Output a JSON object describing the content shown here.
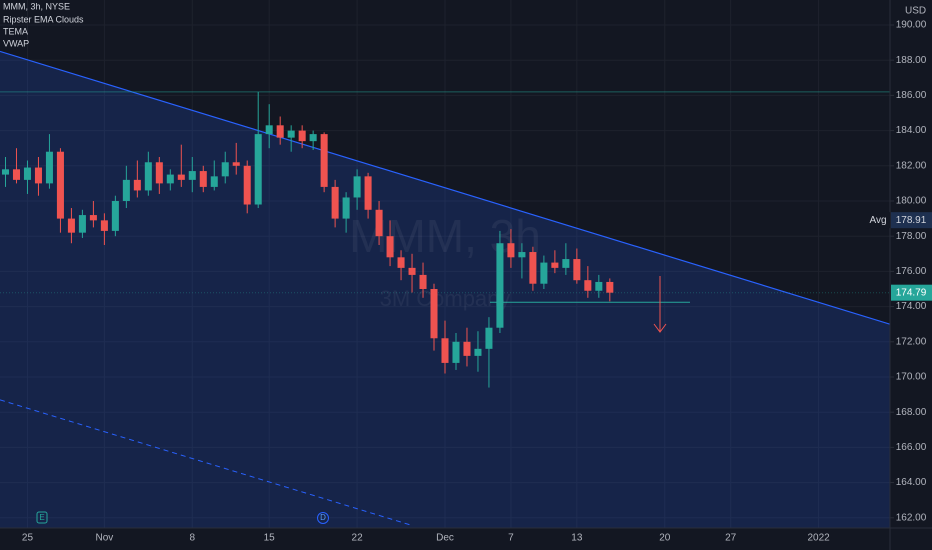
{
  "chart_data": {
    "type": "candlestick",
    "legend": [
      "MMM, 3h, NYSE",
      "Ripster EMA Clouds",
      "TEMA",
      "VWAP"
    ],
    "watermark": {
      "symbol": "MMM, 3h",
      "company": "3M Company"
    },
    "currency": "USD",
    "avg_label": "Avg",
    "avg_value": 178.91,
    "last_price": 174.79,
    "events": [
      "E",
      "D"
    ],
    "up_color": "#26a69a",
    "down_color": "#ef5350",
    "grid": true,
    "ylim": [
      161.42,
      191.42
    ],
    "yticks": [
      {
        "value": 190,
        "label": "190.00"
      },
      {
        "value": 188,
        "label": "188.00"
      },
      {
        "value": 186,
        "label": "186.00"
      },
      {
        "value": 184,
        "label": "184.00"
      },
      {
        "value": 182,
        "label": "182.00"
      },
      {
        "value": 180,
        "label": "180.00"
      },
      {
        "value": 178,
        "label": "178.00"
      },
      {
        "value": 176,
        "label": "176.00"
      },
      {
        "value": 174,
        "label": "174.00"
      },
      {
        "value": 172,
        "label": "172.00"
      },
      {
        "value": 170,
        "label": "170.00"
      },
      {
        "value": 168,
        "label": "168.00"
      },
      {
        "value": 166,
        "label": "166.00"
      },
      {
        "value": 164,
        "label": "164.00"
      },
      {
        "value": 162,
        "label": "162.00"
      }
    ],
    "categories": [
      null,
      null,
      "25",
      null,
      null,
      null,
      null,
      null,
      null,
      "Nov",
      null,
      null,
      null,
      null,
      null,
      null,
      null,
      "8",
      null,
      null,
      null,
      null,
      null,
      null,
      "15",
      null,
      null,
      null,
      null,
      null,
      null,
      null,
      "22",
      null,
      null,
      null,
      null,
      null,
      null,
      null,
      "Dec",
      null,
      null,
      null,
      null,
      null,
      "7",
      null,
      null,
      null,
      null,
      null,
      "13",
      null,
      null,
      null,
      null,
      null,
      null,
      null,
      "20",
      null,
      null,
      null,
      null,
      null,
      "27",
      null,
      null,
      null,
      null,
      null,
      null,
      null,
      "2022",
      null,
      null,
      null,
      null,
      null,
      null
    ],
    "open": [
      181.5,
      181.8,
      181.2,
      181.9,
      181,
      182.8,
      179,
      178.2,
      179.2,
      178.9,
      178.3,
      180,
      181.2,
      180.6,
      182.2,
      181,
      181.5,
      181.2,
      181.7,
      180.8,
      181.4,
      182.2,
      182,
      179.8,
      183.8,
      184.3,
      183.6,
      184,
      183.4,
      183.8,
      180.8,
      179,
      180.2,
      181.4,
      179.5,
      178,
      176.8,
      176.2,
      175.8,
      175,
      172.2,
      170.8,
      172,
      171.2,
      171.6,
      172.8,
      177.6,
      176.8,
      177.1,
      175.3,
      176.5,
      176.2,
      176.7,
      175.5,
      174.9,
      175.4,
      null,
      null,
      null,
      null,
      null,
      null,
      null,
      null,
      null,
      null,
      null,
      null,
      null,
      null,
      null,
      null,
      null,
      null,
      null,
      null,
      null,
      null,
      null,
      null,
      null
    ],
    "high": [
      182.5,
      183,
      182.3,
      182.5,
      183.8,
      183,
      179.6,
      179.5,
      180,
      179.3,
      180.3,
      182,
      182.3,
      182.8,
      182.5,
      181.8,
      183.2,
      182.5,
      182,
      182.3,
      182.8,
      183.3,
      182.3,
      186.2,
      185.5,
      184.8,
      184.3,
      184.3,
      184,
      183.9,
      181.2,
      180.5,
      181.8,
      181.6,
      180,
      178.9,
      177.2,
      177,
      176.5,
      175.3,
      173.2,
      172.5,
      172.8,
      172.6,
      173.4,
      178.3,
      178.4,
      177.6,
      177.4,
      176.9,
      177.2,
      177.6,
      177.3,
      176.3,
      175.8,
      175.6,
      null,
      null,
      null,
      null,
      null,
      null,
      null,
      null,
      null,
      null,
      null,
      null,
      null,
      null,
      null,
      null,
      null,
      null,
      null,
      null,
      null,
      null,
      null,
      null,
      null
    ],
    "low": [
      180.8,
      181,
      180.4,
      180.3,
      180.7,
      178.2,
      177.6,
      177.9,
      178.5,
      177.5,
      178,
      179.6,
      180.2,
      180.3,
      180.4,
      180.6,
      180.8,
      180.5,
      180.5,
      180.6,
      181,
      181.5,
      179.3,
      179.6,
      183,
      183.2,
      182.8,
      183,
      182.9,
      180.5,
      178.5,
      178.2,
      179.5,
      179,
      177.5,
      176.3,
      175.5,
      174.8,
      174.5,
      171.5,
      170.2,
      170.4,
      170.6,
      170.3,
      169.4,
      172.5,
      176.2,
      175.6,
      174.9,
      175,
      175.9,
      175.8,
      175.3,
      174.5,
      174.5,
      174.3,
      null,
      null,
      null,
      null,
      null,
      null,
      null,
      null,
      null,
      null,
      null,
      null,
      null,
      null,
      null,
      null,
      null,
      null,
      null,
      null,
      null,
      null,
      null,
      null,
      null
    ],
    "close": [
      181.8,
      181.2,
      181.9,
      181,
      182.8,
      179,
      178.2,
      179.2,
      178.9,
      178.3,
      180,
      181.2,
      180.6,
      182.2,
      181,
      181.5,
      181.2,
      181.7,
      180.8,
      181.4,
      182.2,
      182,
      179.8,
      183.8,
      184.3,
      183.6,
      184,
      183.4,
      183.8,
      180.8,
      179,
      180.2,
      181.4,
      179.5,
      178,
      176.8,
      176.2,
      175.8,
      175,
      172.2,
      170.8,
      172,
      171.2,
      171.6,
      172.8,
      177.6,
      176.8,
      177.1,
      175.3,
      176.5,
      176.2,
      176.7,
      175.5,
      174.9,
      175.4,
      174.79,
      null,
      null,
      null,
      null,
      null,
      null,
      null,
      null,
      null,
      null,
      null,
      null,
      null,
      null,
      null,
      null,
      null,
      null,
      null,
      null,
      null,
      null,
      null,
      null,
      null
    ],
    "trend_lines": [
      [
        188.5,
        173.0
      ],
      [
        168.7,
        161.6
      ]
    ],
    "levels": [
      186.2,
      174.25
    ]
  }
}
